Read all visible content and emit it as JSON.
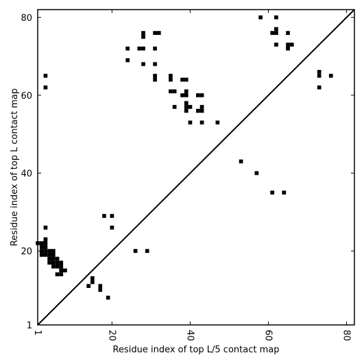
{
  "chart_data": {
    "type": "heatmap",
    "title": "",
    "xlabel": "Residue index of top L/5 contact map",
    "ylabel": "Residue index of top L contact map",
    "xlim": [
      1,
      82
    ],
    "ylim": [
      1,
      82
    ],
    "x_ticks": [
      1,
      20,
      40,
      60,
      80
    ],
    "y_ticks": [
      1,
      20,
      40,
      60,
      80
    ],
    "grid": false,
    "legend": "none",
    "cell_color": "#000000",
    "diagonal_line": true,
    "upper_triangle_contacts": [
      [
        58,
        80
      ],
      [
        62,
        80
      ],
      [
        28,
        76
      ],
      [
        31,
        76
      ],
      [
        32,
        76
      ],
      [
        61,
        76
      ],
      [
        62,
        76
      ],
      [
        62,
        77
      ],
      [
        65,
        76
      ],
      [
        28,
        75
      ],
      [
        62,
        73
      ],
      [
        65,
        73
      ],
      [
        66,
        73
      ],
      [
        65,
        72
      ],
      [
        24,
        72
      ],
      [
        27,
        72
      ],
      [
        28,
        72
      ],
      [
        31,
        72
      ],
      [
        24,
        69
      ],
      [
        28,
        68
      ],
      [
        31,
        68
      ],
      [
        3,
        65
      ],
      [
        31,
        65
      ],
      [
        35,
        65
      ],
      [
        73,
        66
      ],
      [
        73,
        65
      ],
      [
        76,
        65
      ],
      [
        31,
        64
      ],
      [
        35,
        64
      ],
      [
        38,
        64
      ],
      [
        39,
        64
      ],
      [
        3,
        62
      ],
      [
        73,
        62
      ],
      [
        35,
        61
      ],
      [
        36,
        61
      ],
      [
        39,
        61
      ],
      [
        38,
        60
      ],
      [
        39,
        60
      ],
      [
        42,
        60
      ],
      [
        43,
        60
      ],
      [
        39,
        58
      ],
      [
        36,
        57
      ],
      [
        39,
        57
      ],
      [
        40,
        57
      ],
      [
        43,
        57
      ],
      [
        39,
        56
      ],
      [
        42,
        56
      ],
      [
        43,
        56
      ],
      [
        40,
        53
      ],
      [
        43,
        53
      ],
      [
        47,
        53
      ],
      [
        53,
        43
      ],
      [
        57,
        40
      ],
      [
        61,
        35
      ],
      [
        64,
        35
      ]
    ],
    "lower_triangle_contacts": [
      [
        18,
        29
      ],
      [
        20,
        29
      ],
      [
        20,
        26
      ],
      [
        3,
        26
      ],
      [
        3,
        23
      ],
      [
        26,
        20
      ],
      [
        29,
        20
      ],
      [
        1,
        22
      ],
      [
        2,
        22
      ],
      [
        3,
        22
      ],
      [
        2,
        21
      ],
      [
        3,
        21
      ],
      [
        2,
        20
      ],
      [
        3,
        20
      ],
      [
        4,
        20
      ],
      [
        5,
        20
      ],
      [
        2,
        19
      ],
      [
        3,
        19
      ],
      [
        4,
        19
      ],
      [
        5,
        19
      ],
      [
        4,
        18
      ],
      [
        5,
        18
      ],
      [
        6,
        18
      ],
      [
        4,
        17
      ],
      [
        5,
        17
      ],
      [
        6,
        17
      ],
      [
        7,
        17
      ],
      [
        5,
        16
      ],
      [
        6,
        16
      ],
      [
        7,
        16
      ],
      [
        7,
        15
      ],
      [
        8,
        15
      ],
      [
        6,
        14
      ],
      [
        7,
        14
      ],
      [
        15,
        13
      ],
      [
        15,
        12
      ],
      [
        14,
        11
      ],
      [
        17,
        11
      ],
      [
        17,
        10
      ],
      [
        19,
        8
      ]
    ]
  }
}
